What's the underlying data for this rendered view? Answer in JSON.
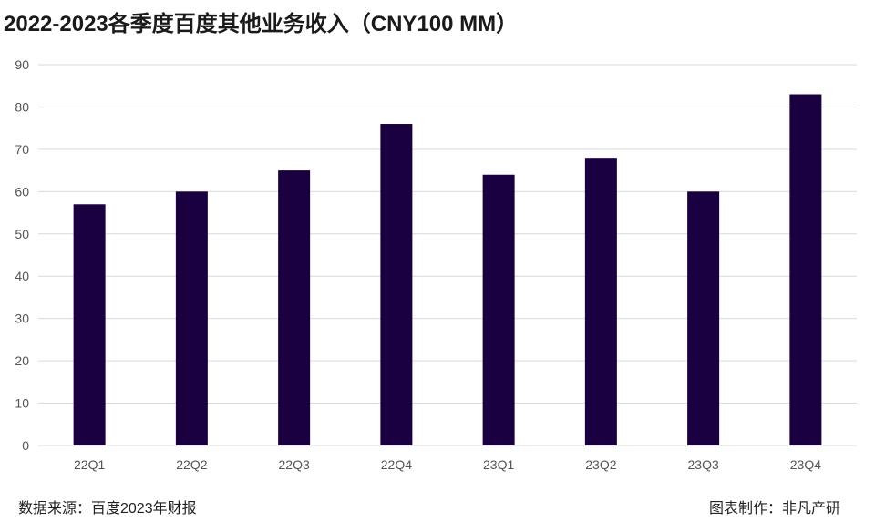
{
  "chart_data": {
    "type": "bar",
    "title": "2022-2023各季度百度其他业务收入（CNY100 MM）",
    "categories": [
      "22Q1",
      "22Q2",
      "22Q3",
      "22Q4",
      "23Q1",
      "23Q2",
      "23Q3",
      "23Q4"
    ],
    "values": [
      57,
      60,
      65,
      76,
      64,
      68,
      60,
      83
    ],
    "ylim": [
      0,
      90
    ],
    "yticks": [
      0,
      10,
      20,
      30,
      40,
      50,
      60,
      70,
      80,
      90
    ],
    "grid": true,
    "bar_color": "#1a0040",
    "grid_color": "#d9d9d9",
    "xlabel": "",
    "ylabel": ""
  },
  "footer": {
    "source": "数据来源：百度2023年财报",
    "credit": "图表制作：非凡产研"
  }
}
